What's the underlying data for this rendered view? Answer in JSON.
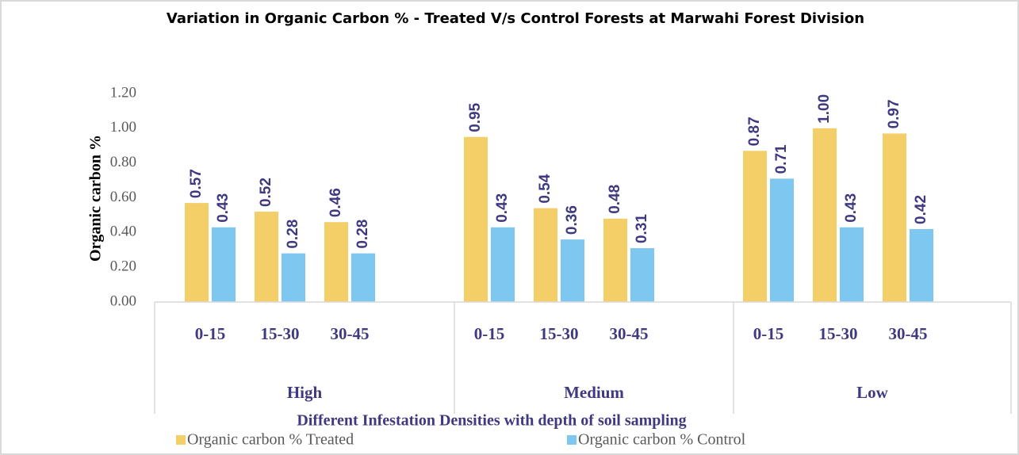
{
  "chart_data": {
    "type": "bar",
    "title": "Variation in Organic Carbon % - Treated V/s Control Forests  at Marwahi Forest Division",
    "categories": [
      "0-15",
      "15-30",
      "30-45",
      null,
      "0-15",
      "15-30",
      "30-45",
      null,
      "0-15",
      "15-30",
      "30-45"
    ],
    "groups": [
      "High",
      "Medium",
      "Low"
    ],
    "x_label": "Different Infestation Densities with depth of soil sampling",
    "y_label": "Organic carbon %",
    "series": [
      {
        "name": "Organic carbon % Treated",
        "color": "#f4cf68",
        "values": [
          0.57,
          0.52,
          0.46,
          null,
          0.95,
          0.54,
          0.48,
          null,
          0.87,
          1.0,
          0.97
        ],
        "value_labels": [
          "0.57",
          "0.52",
          "0.46",
          null,
          "0.95",
          "0.54",
          "0.48",
          null,
          "0.87",
          "1.00",
          "0.97"
        ]
      },
      {
        "name": "Organic carbon % Control",
        "color": "#7ec7f0",
        "values": [
          0.43,
          0.28,
          0.28,
          null,
          0.43,
          0.36,
          0.31,
          null,
          0.71,
          0.43,
          0.42
        ],
        "value_labels": [
          "0.43",
          "0.28",
          "0.28",
          null,
          "0.43",
          "0.36",
          "0.31",
          null,
          "0.71",
          "0.43",
          "0.42"
        ]
      }
    ],
    "ylim": [
      0,
      1.2
    ],
    "yticks": [
      {
        "value": 0,
        "label": "0.00"
      },
      {
        "value": 0.2,
        "label": "0.20"
      },
      {
        "value": 0.4,
        "label": "0.40"
      },
      {
        "value": 0.6,
        "label": "0.60"
      },
      {
        "value": 0.8,
        "label": "0.80"
      },
      {
        "value": 1.0,
        "label": "1.00"
      },
      {
        "value": 1.2,
        "label": "1.20"
      }
    ],
    "legend": "bottom"
  }
}
